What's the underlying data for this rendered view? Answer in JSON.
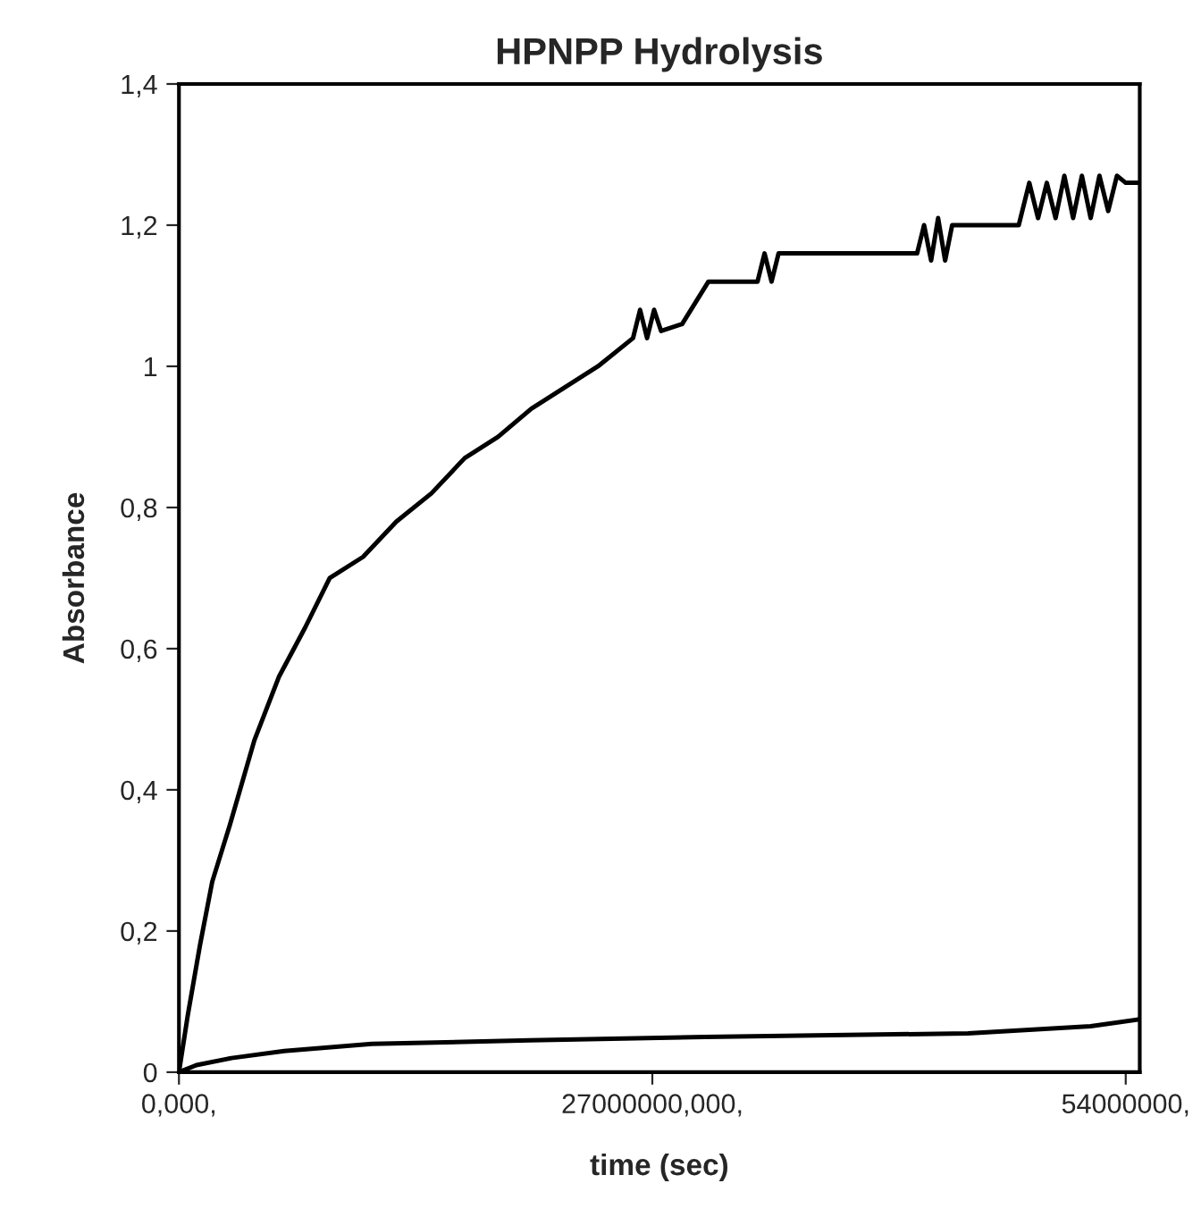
{
  "chart_data": {
    "type": "line",
    "title": "HPNPP Hydrolysis",
    "xlabel": "time (sec)",
    "ylabel": "Absorbance",
    "xlim": [
      0,
      54800000
    ],
    "ylim": [
      0,
      1.4
    ],
    "xticks": [
      {
        "value": 0,
        "label": "0,000,"
      },
      {
        "value": 27000000,
        "label": "27000000,000,"
      },
      {
        "value": 54000000,
        "label": "54000000,"
      }
    ],
    "yticks": [
      {
        "value": 0,
        "label": "0"
      },
      {
        "value": 0.2,
        "label": "0,2"
      },
      {
        "value": 0.4,
        "label": "0,4"
      },
      {
        "value": 0.6,
        "label": "0,6"
      },
      {
        "value": 0.8,
        "label": "0,8"
      },
      {
        "value": 1,
        "label": "1"
      },
      {
        "value": 1.2,
        "label": "1,2"
      },
      {
        "value": 1.4,
        "label": "1,4"
      }
    ],
    "grid": false,
    "marker": "none",
    "line_style": "solid",
    "series": [
      {
        "color": "#000000",
        "x": [
          0,
          500000,
          1200000,
          1900000,
          2900000,
          4300000,
          5700000,
          7200000,
          8600000,
          10500000,
          12400000,
          14400000,
          16300000,
          18200000,
          20100000,
          22000000,
          23900000,
          25900000,
          26300000,
          26700000,
          27100000,
          27500000,
          28700000,
          30200000,
          33000000,
          33400000,
          33800000,
          34200000,
          34500000,
          42100000,
          42500000,
          42900000,
          43300000,
          43700000,
          44100000,
          45500000,
          47900000,
          48500000,
          49000000,
          49500000,
          50000000,
          50500000,
          51000000,
          51500000,
          52000000,
          52500000,
          53000000,
          53500000,
          54000000,
          54800000
        ],
        "values": [
          0,
          0.08,
          0.18,
          0.27,
          0.35,
          0.47,
          0.56,
          0.63,
          0.7,
          0.73,
          0.78,
          0.82,
          0.87,
          0.9,
          0.94,
          0.97,
          1.0,
          1.04,
          1.08,
          1.04,
          1.08,
          1.05,
          1.06,
          1.12,
          1.12,
          1.16,
          1.12,
          1.16,
          1.16,
          1.16,
          1.2,
          1.15,
          1.21,
          1.15,
          1.2,
          1.2,
          1.2,
          1.26,
          1.21,
          1.26,
          1.21,
          1.27,
          1.21,
          1.27,
          1.21,
          1.27,
          1.22,
          1.27,
          1.26,
          1.26
        ]
      },
      {
        "color": "#000000",
        "x": [
          0,
          1000000,
          3000000,
          6000000,
          11000000,
          20000000,
          30000000,
          45000000,
          52000000,
          54800000
        ],
        "values": [
          0,
          0.01,
          0.02,
          0.03,
          0.04,
          0.045,
          0.05,
          0.055,
          0.065,
          0.075
        ]
      }
    ]
  }
}
